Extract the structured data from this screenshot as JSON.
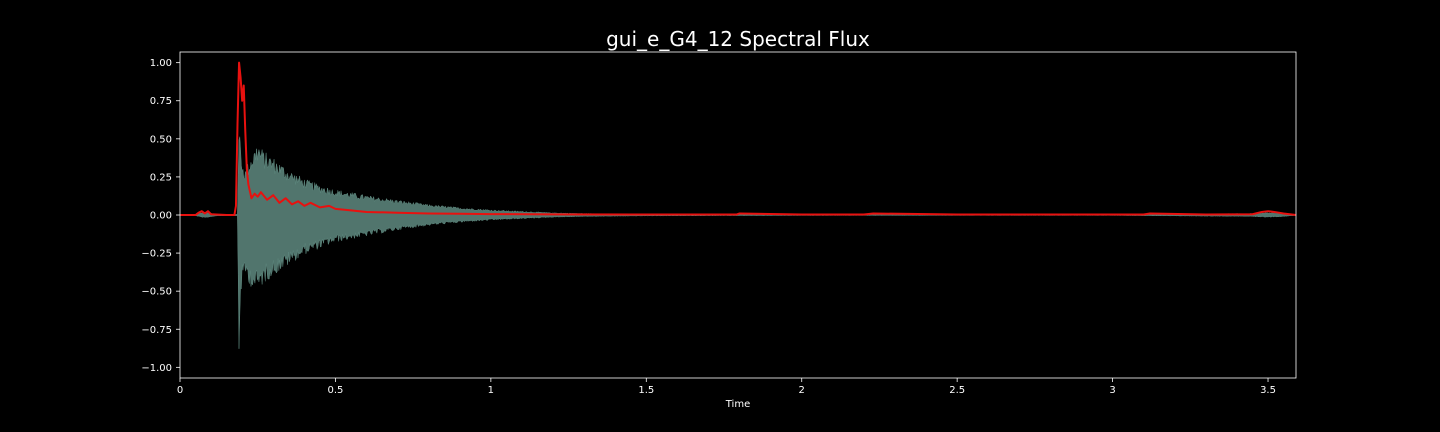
{
  "chart_data": {
    "type": "line",
    "title": "gui_e_G4_12 Spectral Flux",
    "xlabel": "Time",
    "ylabel": "",
    "xlim": [
      0,
      3.59
    ],
    "ylim": [
      -1.07,
      1.07
    ],
    "grid": false,
    "background": "#000000",
    "axis_color": "#ffffff",
    "x_ticks": [
      {
        "value": 0,
        "label": "0"
      },
      {
        "value": 0.5,
        "label": "0.5"
      },
      {
        "value": 1,
        "label": "1"
      },
      {
        "value": 1.5,
        "label": "1.5"
      },
      {
        "value": 2,
        "label": "2"
      },
      {
        "value": 2.5,
        "label": "2.5"
      },
      {
        "value": 3,
        "label": "3"
      },
      {
        "value": 3.5,
        "label": "3.5"
      }
    ],
    "y_ticks": [
      {
        "value": 1.0,
        "label": "1.00"
      },
      {
        "value": 0.75,
        "label": "0.75"
      },
      {
        "value": 0.5,
        "label": "0.50"
      },
      {
        "value": 0.25,
        "label": "0.25"
      },
      {
        "value": 0.0,
        "label": "0.00"
      },
      {
        "value": -0.25,
        "label": "−0.25"
      },
      {
        "value": -0.5,
        "label": "−0.50"
      },
      {
        "value": -0.75,
        "label": "−0.75"
      },
      {
        "value": -1.0,
        "label": "−1.00"
      }
    ],
    "series": [
      {
        "kind": "waveform-envelope",
        "color": "#5f8a80",
        "x": [
          0,
          0.05,
          0.07,
          0.08,
          0.09,
          0.12,
          0.17,
          0.185,
          0.19,
          0.192,
          0.195,
          0.2,
          0.21,
          0.23,
          0.25,
          0.27,
          0.3,
          0.35,
          0.4,
          0.45,
          0.5,
          0.6,
          0.7,
          0.8,
          0.9,
          1.0,
          1.1,
          1.2,
          1.3,
          1.5,
          1.8,
          2.2,
          2.5,
          3.0,
          3.45,
          3.5,
          3.55,
          3.59
        ],
        "upper": [
          0.005,
          0.005,
          0.015,
          0.02,
          0.015,
          0.005,
          0.005,
          0.005,
          0.6,
          0.55,
          0.5,
          0.35,
          0.3,
          0.4,
          0.48,
          0.42,
          0.38,
          0.3,
          0.24,
          0.2,
          0.17,
          0.13,
          0.1,
          0.07,
          0.05,
          0.035,
          0.025,
          0.015,
          0.01,
          0.006,
          0.004,
          0.003,
          0.003,
          0.003,
          0.01,
          0.015,
          0.01,
          0.003
        ],
        "lower": [
          -0.005,
          -0.005,
          -0.015,
          -0.02,
          -0.015,
          -0.005,
          -0.005,
          -0.005,
          -0.97,
          -0.85,
          -0.55,
          -0.45,
          -0.4,
          -0.48,
          -0.5,
          -0.45,
          -0.4,
          -0.33,
          -0.26,
          -0.22,
          -0.18,
          -0.14,
          -0.1,
          -0.07,
          -0.05,
          -0.035,
          -0.025,
          -0.015,
          -0.01,
          -0.006,
          -0.004,
          -0.003,
          -0.003,
          -0.003,
          -0.01,
          -0.015,
          -0.01,
          -0.003
        ]
      },
      {
        "kind": "line",
        "color": "#e8110f",
        "x": [
          0,
          0.05,
          0.06,
          0.07,
          0.08,
          0.09,
          0.1,
          0.15,
          0.175,
          0.18,
          0.185,
          0.19,
          0.195,
          0.2,
          0.205,
          0.21,
          0.215,
          0.22,
          0.23,
          0.24,
          0.25,
          0.26,
          0.28,
          0.3,
          0.32,
          0.34,
          0.36,
          0.38,
          0.4,
          0.42,
          0.45,
          0.48,
          0.5,
          0.55,
          0.6,
          0.7,
          0.8,
          0.9,
          1.0,
          1.2,
          1.5,
          1.79,
          1.8,
          2.0,
          2.2,
          2.23,
          2.5,
          2.8,
          3.1,
          3.12,
          3.3,
          3.45,
          3.48,
          3.5,
          3.52,
          3.55,
          3.59
        ],
        "y": [
          0.0,
          0.0,
          0.015,
          0.025,
          0.01,
          0.025,
          0.005,
          0.0,
          0.0,
          0.06,
          0.6,
          1.0,
          0.9,
          0.75,
          0.85,
          0.55,
          0.3,
          0.2,
          0.11,
          0.14,
          0.12,
          0.15,
          0.1,
          0.13,
          0.08,
          0.11,
          0.07,
          0.09,
          0.06,
          0.08,
          0.05,
          0.06,
          0.04,
          0.03,
          0.02,
          0.015,
          0.01,
          0.008,
          0.006,
          0.004,
          0.003,
          0.003,
          0.01,
          0.003,
          0.003,
          0.01,
          0.003,
          0.003,
          0.003,
          0.01,
          0.003,
          0.005,
          0.02,
          0.025,
          0.02,
          0.01,
          0.0
        ]
      }
    ]
  }
}
